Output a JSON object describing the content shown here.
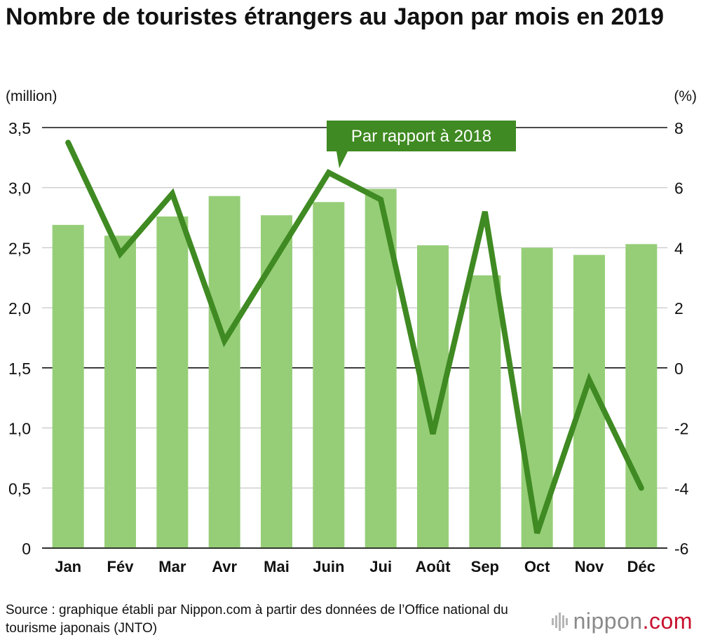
{
  "chart_data": {
    "type": "bar+line",
    "title": "Nombre de touristes étrangers au Japon par mois en 2019",
    "categories": [
      "Jan",
      "Fév",
      "Mar",
      "Avr",
      "Mai",
      "Juin",
      "Jui",
      "Août",
      "Sep",
      "Oct",
      "Nov",
      "Déc"
    ],
    "bar_series": {
      "name": "Touristes étrangers",
      "unit": "(million)",
      "values": [
        2.69,
        2.6,
        2.76,
        2.93,
        2.77,
        2.88,
        2.99,
        2.52,
        2.27,
        2.5,
        2.44,
        2.53
      ],
      "color": "#96ce78"
    },
    "line_series": {
      "name": "Par rapport à 2018",
      "unit": "(%)",
      "values": [
        7.5,
        3.8,
        5.8,
        0.9,
        3.7,
        6.5,
        5.6,
        -2.2,
        5.2,
        -5.5,
        -0.4,
        -4.0
      ],
      "color": "#3f8a22"
    },
    "y_left": {
      "min": 0,
      "max": 3.5,
      "ticks": [
        "0",
        "0,5",
        "1,0",
        "1,5",
        "2,0",
        "2,5",
        "3,0",
        "3,5"
      ]
    },
    "y_right": {
      "min": -6,
      "max": 8,
      "ticks": [
        "-6",
        "-4",
        "-2",
        "0",
        "2",
        "4",
        "6",
        "8"
      ]
    },
    "annotation": "Par rapport à 2018"
  },
  "source": "Source : graphique établi par Nippon.com à partir des données de l’Office national du tourisme japonais (JNTO)",
  "logo": {
    "text": "nippon",
    "suffix": ".com"
  },
  "colors": {
    "bar": "#96ce78",
    "line": "#3f8a22",
    "label_bg": "#3f8a22",
    "grid": "#cccccc",
    "axis": "#111111"
  }
}
